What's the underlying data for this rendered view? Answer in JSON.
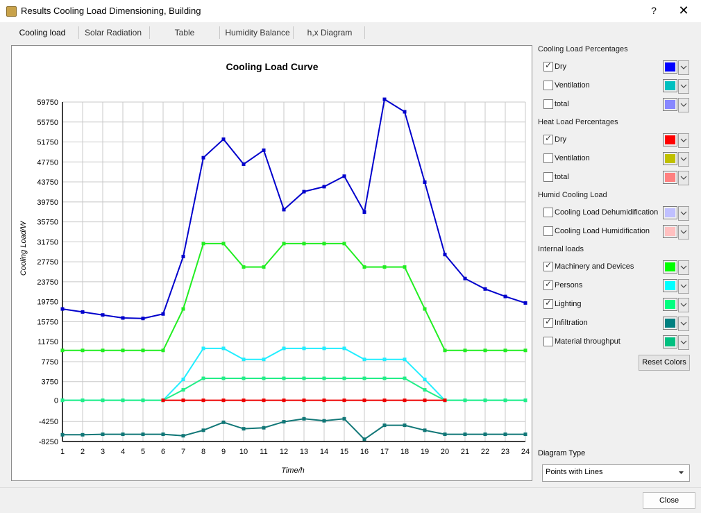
{
  "window": {
    "title": "Results Cooling Load Dimensioning, Building",
    "help_label": "?",
    "close_label": "✕"
  },
  "tabs": [
    {
      "label": "Cooling load",
      "selected": true
    },
    {
      "label": "Solar Radiation",
      "selected": false
    },
    {
      "label": "Table",
      "selected": false
    },
    {
      "label": "Humidity Balance",
      "selected": false
    },
    {
      "label": "h,x Diagram",
      "selected": false
    }
  ],
  "chart_data": {
    "type": "line",
    "title": "Cooling Load Curve",
    "xlabel": "Time/h",
    "ylabel": "Cooling Load/W",
    "x": [
      1,
      2,
      3,
      4,
      5,
      6,
      7,
      8,
      9,
      10,
      11,
      12,
      13,
      14,
      15,
      16,
      17,
      18,
      19,
      20,
      21,
      22,
      23,
      24
    ],
    "xlim": [
      1,
      24
    ],
    "ylim": [
      -8250,
      59750
    ],
    "yticks": [
      -8250,
      -4250,
      0,
      3750,
      7750,
      11750,
      15750,
      19750,
      23750,
      27750,
      31750,
      35750,
      39750,
      43750,
      47750,
      51750,
      55750,
      59750
    ],
    "grid": true,
    "legend": "none",
    "series": [
      {
        "name": "Dry",
        "color": "#0000cc",
        "values": [
          18300,
          17700,
          17100,
          16500,
          16400,
          17300,
          28800,
          48600,
          52300,
          47300,
          50100,
          38200,
          41800,
          42800,
          44900,
          37700,
          60300,
          57800,
          43700,
          29200,
          24400,
          22300,
          20800,
          19500
        ]
      },
      {
        "name": "Machinery and Devices",
        "color": "#22ee22",
        "values": [
          10000,
          10000,
          10000,
          10000,
          10000,
          10000,
          18300,
          31400,
          31400,
          26700,
          26700,
          31400,
          31400,
          31400,
          31400,
          26700,
          26700,
          26700,
          18300,
          10000,
          10000,
          10000,
          10000,
          10000
        ]
      },
      {
        "name": "Persons",
        "color": "#22eeff",
        "values": [
          0,
          0,
          0,
          0,
          0,
          0,
          4200,
          10400,
          10400,
          8200,
          8200,
          10400,
          10400,
          10400,
          10400,
          8200,
          8200,
          8200,
          4200,
          0,
          0,
          0,
          0,
          0
        ]
      },
      {
        "name": "Lighting",
        "color": "#22ee88",
        "values": [
          0,
          0,
          0,
          0,
          0,
          0,
          2100,
          4400,
          4400,
          4400,
          4400,
          4400,
          4400,
          4400,
          4400,
          4400,
          4400,
          4400,
          2100,
          0,
          0,
          0,
          0,
          0
        ]
      },
      {
        "name": "Dry",
        "color": "#ee0000",
        "values": [
          null,
          null,
          null,
          null,
          null,
          0,
          0,
          0,
          0,
          0,
          0,
          0,
          0,
          0,
          0,
          0,
          0,
          0,
          0,
          0,
          null,
          null,
          null,
          null
        ]
      },
      {
        "name": "Infiltration",
        "color": "#117777",
        "values": [
          -6900,
          -6900,
          -6800,
          -6800,
          -6800,
          -6800,
          -7100,
          -6000,
          -4400,
          -5700,
          -5500,
          -4300,
          -3700,
          -4100,
          -3700,
          -7800,
          -5000,
          -5000,
          -6000,
          -6800,
          -6800,
          -6800,
          -6800,
          -6800
        ]
      }
    ]
  },
  "panel": {
    "groups": [
      {
        "title": "Cooling Load Percentages",
        "items": [
          {
            "label": "Dry",
            "checked": true,
            "color": "#0000ff"
          },
          {
            "label": "Ventilation",
            "checked": false,
            "color": "#00c0c0"
          },
          {
            "label": "total",
            "checked": false,
            "color": "#8888ff"
          }
        ]
      },
      {
        "title": "Heat Load Percentages",
        "items": [
          {
            "label": "Dry",
            "checked": true,
            "color": "#ff0000"
          },
          {
            "label": "Ventilation",
            "checked": false,
            "color": "#c0c000"
          },
          {
            "label": "total",
            "checked": false,
            "color": "#ff8080"
          }
        ]
      },
      {
        "title": "Humid Cooling Load",
        "items": [
          {
            "label": "Cooling Load Dehumidification",
            "checked": false,
            "color": "#c0c0ff"
          },
          {
            "label": "Cooling Load Humidification",
            "checked": false,
            "color": "#ffc0c0"
          }
        ]
      },
      {
        "title": "Internal loads",
        "items": [
          {
            "label": "Machinery and Devices",
            "checked": true,
            "color": "#00ff00"
          },
          {
            "label": "Persons",
            "checked": true,
            "color": "#00ffff"
          },
          {
            "label": "Lighting",
            "checked": true,
            "color": "#00ff80"
          },
          {
            "label": "Infiltration",
            "checked": true,
            "color": "#008080"
          },
          {
            "label": "Material throughput",
            "checked": false,
            "color": "#00c080"
          }
        ]
      }
    ],
    "reset_label": "Reset Colors",
    "diagram_type_label": "Diagram Type",
    "diagram_type_value": "Points with Lines"
  },
  "footer": {
    "close_label": "Close"
  }
}
